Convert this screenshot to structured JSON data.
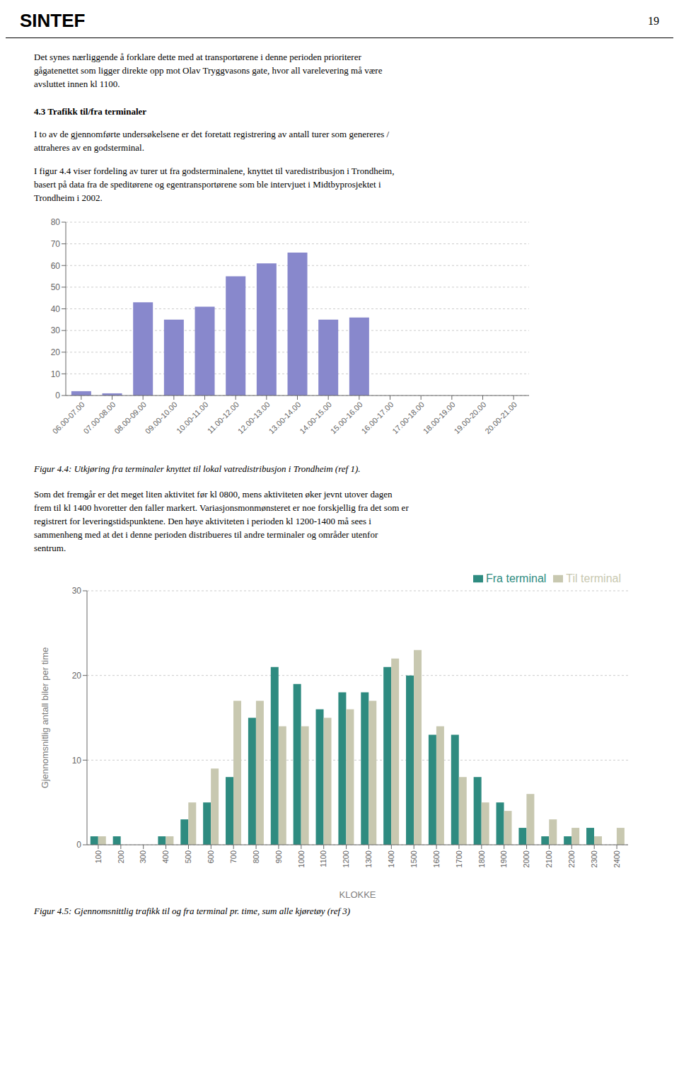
{
  "chart_data": [
    {
      "type": "bar",
      "categories": [
        "06.00-07.00",
        "07.00-08.00",
        "08.00-09.00",
        "09.00-10.00",
        "10.00-11.00",
        "11.00-12.00",
        "12.00-13.00",
        "13.00-14.00",
        "14.00-15.00",
        "15.00-16.00",
        "16.00-17.00",
        "17.00-18.00",
        "18.00-19.00",
        "19.00-20.00",
        "20.00-21.00"
      ],
      "values": [
        2,
        1,
        43,
        35,
        41,
        55,
        61,
        66,
        35,
        36,
        0,
        0,
        0,
        0,
        0
      ],
      "color": "#8888cc",
      "ylim": [
        0,
        80
      ],
      "yticks": [
        0,
        10,
        20,
        30,
        40,
        50,
        60,
        70,
        80
      ],
      "grid": true,
      "annotations": [
        "SINTEF",
        "19",
        "Det synes nærliggende å forklare dette med at transportørene i denne perioden prioriterer\ngågatenettet som ligger direkte opp mot Olav Tryggvasons gate, hvor all varelevering må være\navsluttet innen kl 1100.",
        "4.3  Trafikk til/fra terminaler",
        "I to av de gjennomførte undersøkelsene er det foretatt registrering av antall turer som genereres /\nattraheres av en godsterminal.",
        "I figur 4.4 viser fordeling av turer ut fra godsterminalene, knyttet til varedistribusjon i Trondheim,\nbasert på data fra de speditørene og egentransportørene som ble intervjuet i Midtbyprosjektet i\nTrondheim i 2002.",
        "Figur 4.4: Utkjøring fra terminaler knyttet til lokal vatredistribusjon i Trondheim (ref 1)."
      ]
    },
    {
      "type": "bar",
      "ylabel": "Gjennomsnitlig antall biler per time",
      "xlabel": "KLOKKE",
      "categories": [
        "100",
        "200",
        "300",
        "400",
        "500",
        "600",
        "700",
        "800",
        "900",
        "1000",
        "1100",
        "1200",
        "1300",
        "1400",
        "1500",
        "1600",
        "1700",
        "1800",
        "1900",
        "2000",
        "2100",
        "2200",
        "2300",
        "2400"
      ],
      "series": [
        {
          "name": "Fra terminal",
          "color": "#2e8b80",
          "values": [
            1,
            1,
            0,
            1,
            3,
            5,
            8,
            15,
            21,
            19,
            16,
            18,
            18,
            21,
            20,
            13,
            13,
            8,
            5,
            2,
            1,
            1,
            2,
            0
          ]
        },
        {
          "name": "Til terminal",
          "color": "#c8c8b0",
          "values": [
            1,
            0,
            0,
            1,
            5,
            9,
            17,
            17,
            14,
            14,
            15,
            16,
            17,
            22,
            23,
            14,
            8,
            5,
            4,
            6,
            3,
            2,
            1,
            2
          ]
        }
      ],
      "ylim": [
        0,
        30
      ],
      "yticks": [
        0,
        10,
        20,
        30
      ],
      "grid": true,
      "legend": "upper right",
      "annotations": [
        "Som det fremgår er det meget liten aktivitet før kl 0800, mens aktiviteten øker jevnt utover dagen\nfrem til kl 1400 hvoretter den faller markert. Variasjonsmonmønsteret er noe forskjellig fra det som er\nregistrert for leveringstidspunktene. Den høye aktiviteten i perioden kl 1200-1400 må sees i\nsammenheng med at det i denne perioden distribueres til andre terminaler og områder utenfor\nsentrum.",
        "Figur 4.5: Gjennomsnittlig trafikk til og fra terminal pr. time, sum alle kjøretøy (ref 3)"
      ]
    }
  ]
}
